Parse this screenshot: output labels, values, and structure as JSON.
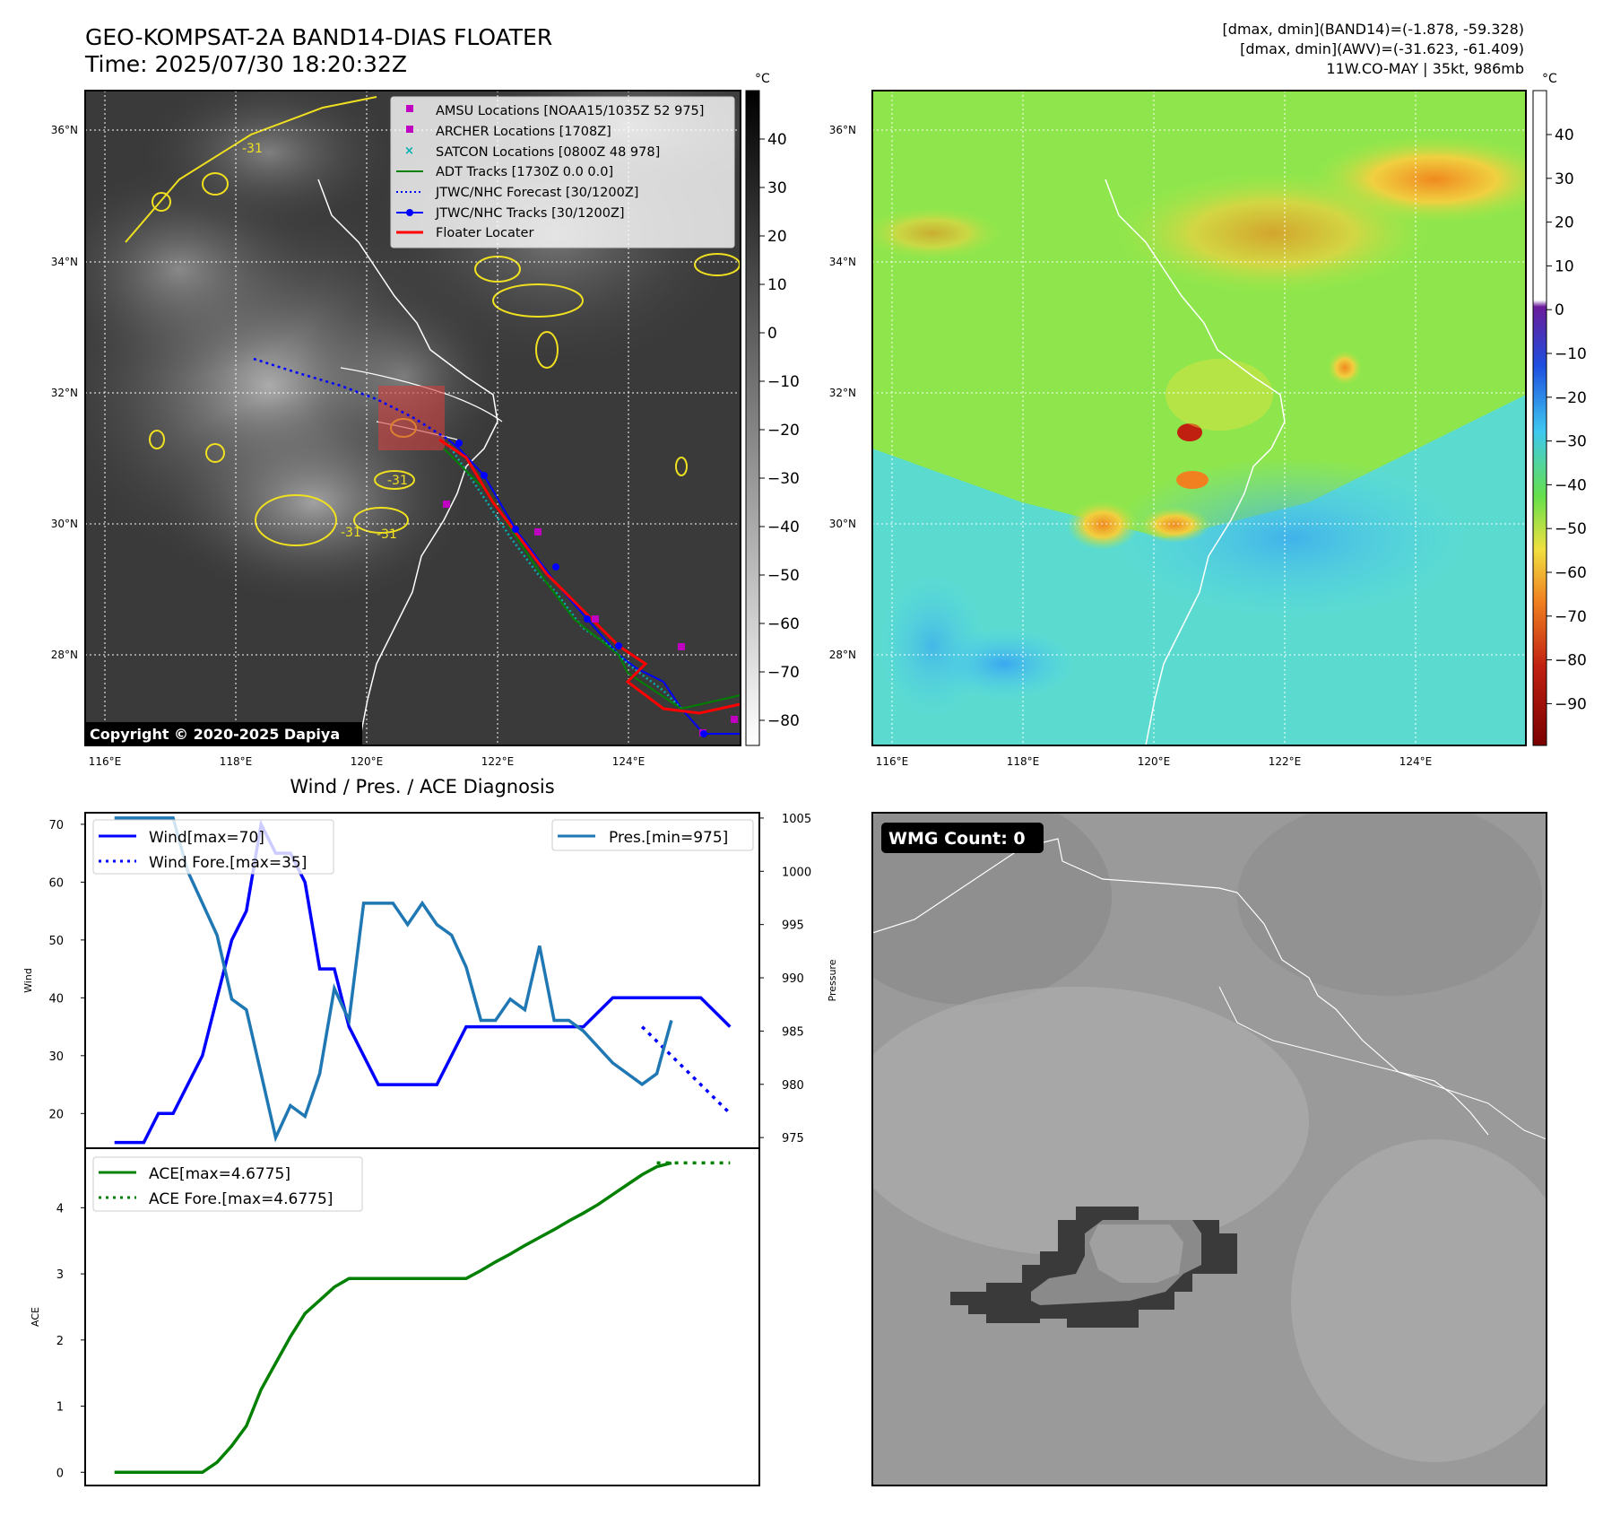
{
  "header": {
    "title": "GEO-KOMPSAT-2A BAND14-DIAS FLOATER",
    "time": "Time: 2025/07/30 18:20:32Z",
    "info_line1": "[dmax, dmin](BAND14)=(-1.878, -59.328)",
    "info_line2": "[dmax, dmin](AWV)=(-31.623, -61.409)",
    "info_line3": "11W.CO-MAY | 35kt, 986mb"
  },
  "map": {
    "lat_labels": [
      "36°N",
      "34°N",
      "32°N",
      "30°N",
      "28°N"
    ],
    "lon_labels": [
      "116°E",
      "118°E",
      "120°E",
      "122°E",
      "124°E"
    ],
    "copyright": "Copyright © 2020-2025 Dapiya",
    "contour_label": "-31",
    "legend": [
      {
        "label": "AMSU Locations [NOAA15/1035Z 52 975]",
        "color": "#c000c0",
        "marker": "square"
      },
      {
        "label": "ARCHER Locations [1708Z]",
        "color": "#c000c0",
        "marker": "square"
      },
      {
        "label": "SATCON Locations [0800Z 48 978]",
        "color": "#00b0b0",
        "marker": "x"
      },
      {
        "label": "ADT Tracks [1730Z 0.0 0.0]",
        "color": "#008000",
        "marker": "line"
      },
      {
        "label": "JTWC/NHC Forecast [30/1200Z]",
        "color": "#0000ff",
        "marker": "dotted"
      },
      {
        "label": "JTWC/NHC Tracks [30/1200Z]",
        "color": "#0000ff",
        "marker": "line-dot"
      },
      {
        "label": "Floater Locater",
        "color": "#ff0000",
        "marker": "line"
      }
    ]
  },
  "colorbar_ir": {
    "unit": "°C",
    "ticks": [
      "40",
      "30",
      "20",
      "10",
      "0",
      "−10",
      "−20",
      "−30",
      "−40",
      "−50",
      "−60",
      "−70",
      "−80"
    ]
  },
  "colorbar_wv": {
    "unit": "°C",
    "ticks": [
      "40",
      "30",
      "20",
      "10",
      "0",
      "−10",
      "−20",
      "−30",
      "−40",
      "−50",
      "−60",
      "−70",
      "−80",
      "−90"
    ]
  },
  "wmg": {
    "label": "WMG Count: 0"
  },
  "chart_data": [
    {
      "type": "line",
      "title": "Wind / Pres. / ACE Diagnosis",
      "ylabel": "Wind",
      "y2label": "Pressure",
      "ylim": [
        14,
        72
      ],
      "y2lim": [
        974,
        1005.5
      ],
      "yticks": [
        "20",
        "30",
        "40",
        "50",
        "60",
        "70"
      ],
      "y2ticks": [
        "975",
        "980",
        "985",
        "990",
        "995",
        "1000",
        "1005"
      ],
      "x_index_range": [
        -2,
        44
      ],
      "legend_left": [
        "Wind[max=70]",
        "Wind Fore.[max=35]"
      ],
      "legend_right": [
        "Pres.[min=975]"
      ],
      "series": [
        {
          "name": "Wind[max=70]",
          "color": "#0000ff",
          "style": "solid",
          "x": [
            0,
            2,
            3,
            4,
            5,
            6,
            7,
            8,
            9,
            10,
            11,
            12,
            13,
            14,
            15,
            16,
            17,
            18,
            19,
            20,
            22,
            24,
            26,
            28,
            30,
            32,
            34,
            36,
            38,
            40,
            42
          ],
          "values": [
            15,
            15,
            20,
            20,
            25,
            30,
            40,
            50,
            55,
            70,
            65,
            65,
            60,
            45,
            45,
            35,
            30,
            25,
            25,
            25,
            25,
            35,
            35,
            35,
            35,
            35,
            40,
            40,
            40,
            40,
            35
          ]
        },
        {
          "name": "Wind Fore.[max=35]",
          "color": "#0000ff",
          "style": "dotted",
          "x": [
            36,
            42
          ],
          "values": [
            35,
            20
          ]
        },
        {
          "name": "Pres.[min=975]",
          "color": "#1f77b4",
          "style": "solid",
          "axis": "right",
          "x": [
            0,
            3,
            4,
            5,
            6,
            7,
            8,
            9,
            10,
            11,
            12,
            13,
            14,
            15,
            16,
            17,
            18,
            19,
            20,
            21,
            22,
            23,
            24,
            25,
            26,
            27,
            28,
            29,
            30,
            31,
            32,
            34,
            36,
            37,
            38
          ],
          "values": [
            1005,
            1005,
            1005,
            1000,
            997,
            994,
            988,
            987,
            981,
            975,
            978,
            977,
            981,
            989,
            986,
            997,
            997,
            997,
            995,
            997,
            995,
            994,
            991,
            986,
            986,
            988,
            987,
            993,
            986,
            986,
            985,
            982,
            980,
            981,
            986
          ]
        }
      ]
    },
    {
      "type": "line",
      "ylabel": "ACE",
      "ylim": [
        -0.2,
        4.9
      ],
      "yticks": [
        "0",
        "1",
        "2",
        "3",
        "4"
      ],
      "x_index_range": [
        -2,
        44
      ],
      "legend": [
        "ACE[max=4.6775]",
        "ACE Fore.[max=4.6775]"
      ],
      "series": [
        {
          "name": "ACE[max=4.6775]",
          "color": "#008000",
          "style": "solid",
          "x": [
            0,
            3,
            6,
            7,
            8,
            9,
            10,
            11,
            12,
            13,
            14,
            15,
            16,
            17,
            18,
            19,
            20,
            21,
            22,
            23,
            24,
            25,
            26,
            27,
            28,
            29,
            30,
            31,
            32,
            33,
            34,
            35,
            36,
            37,
            38
          ],
          "values": [
            0,
            0,
            0,
            0.15,
            0.4,
            0.7,
            1.25,
            1.65,
            2.05,
            2.4,
            2.6,
            2.8,
            2.93,
            2.93,
            2.93,
            2.93,
            2.93,
            2.93,
            2.93,
            2.93,
            2.93,
            3.05,
            3.18,
            3.3,
            3.43,
            3.55,
            3.67,
            3.8,
            3.92,
            4.05,
            4.2,
            4.35,
            4.5,
            4.62,
            4.6775
          ]
        },
        {
          "name": "ACE Fore.[max=4.6775]",
          "color": "#008000",
          "style": "dotted",
          "x": [
            37,
            42
          ],
          "values": [
            4.6775,
            4.6775
          ]
        }
      ]
    }
  ]
}
